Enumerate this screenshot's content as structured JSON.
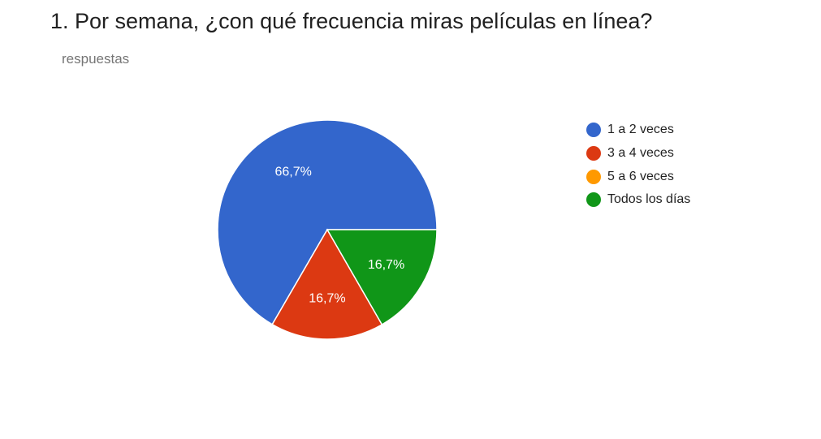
{
  "header": {
    "title": "1. Por semana, ¿con qué frecuencia miras películas en línea?",
    "subtitle": "respuestas"
  },
  "chart_data": {
    "type": "pie",
    "title": "1. Por semana, ¿con qué frecuencia miras películas en línea?",
    "subtitle": "respuestas",
    "legend_position": "right",
    "categories": [
      "1 a 2 veces",
      "3 a 4 veces",
      "5 a 6 veces",
      "Todos los días"
    ],
    "values": [
      66.7,
      16.7,
      0,
      16.7
    ],
    "labels": [
      "66,7%",
      "16,7%",
      "",
      "16,7%"
    ],
    "colors": [
      "#3366cc",
      "#dc3912",
      "#ff9900",
      "#109618"
    ]
  }
}
